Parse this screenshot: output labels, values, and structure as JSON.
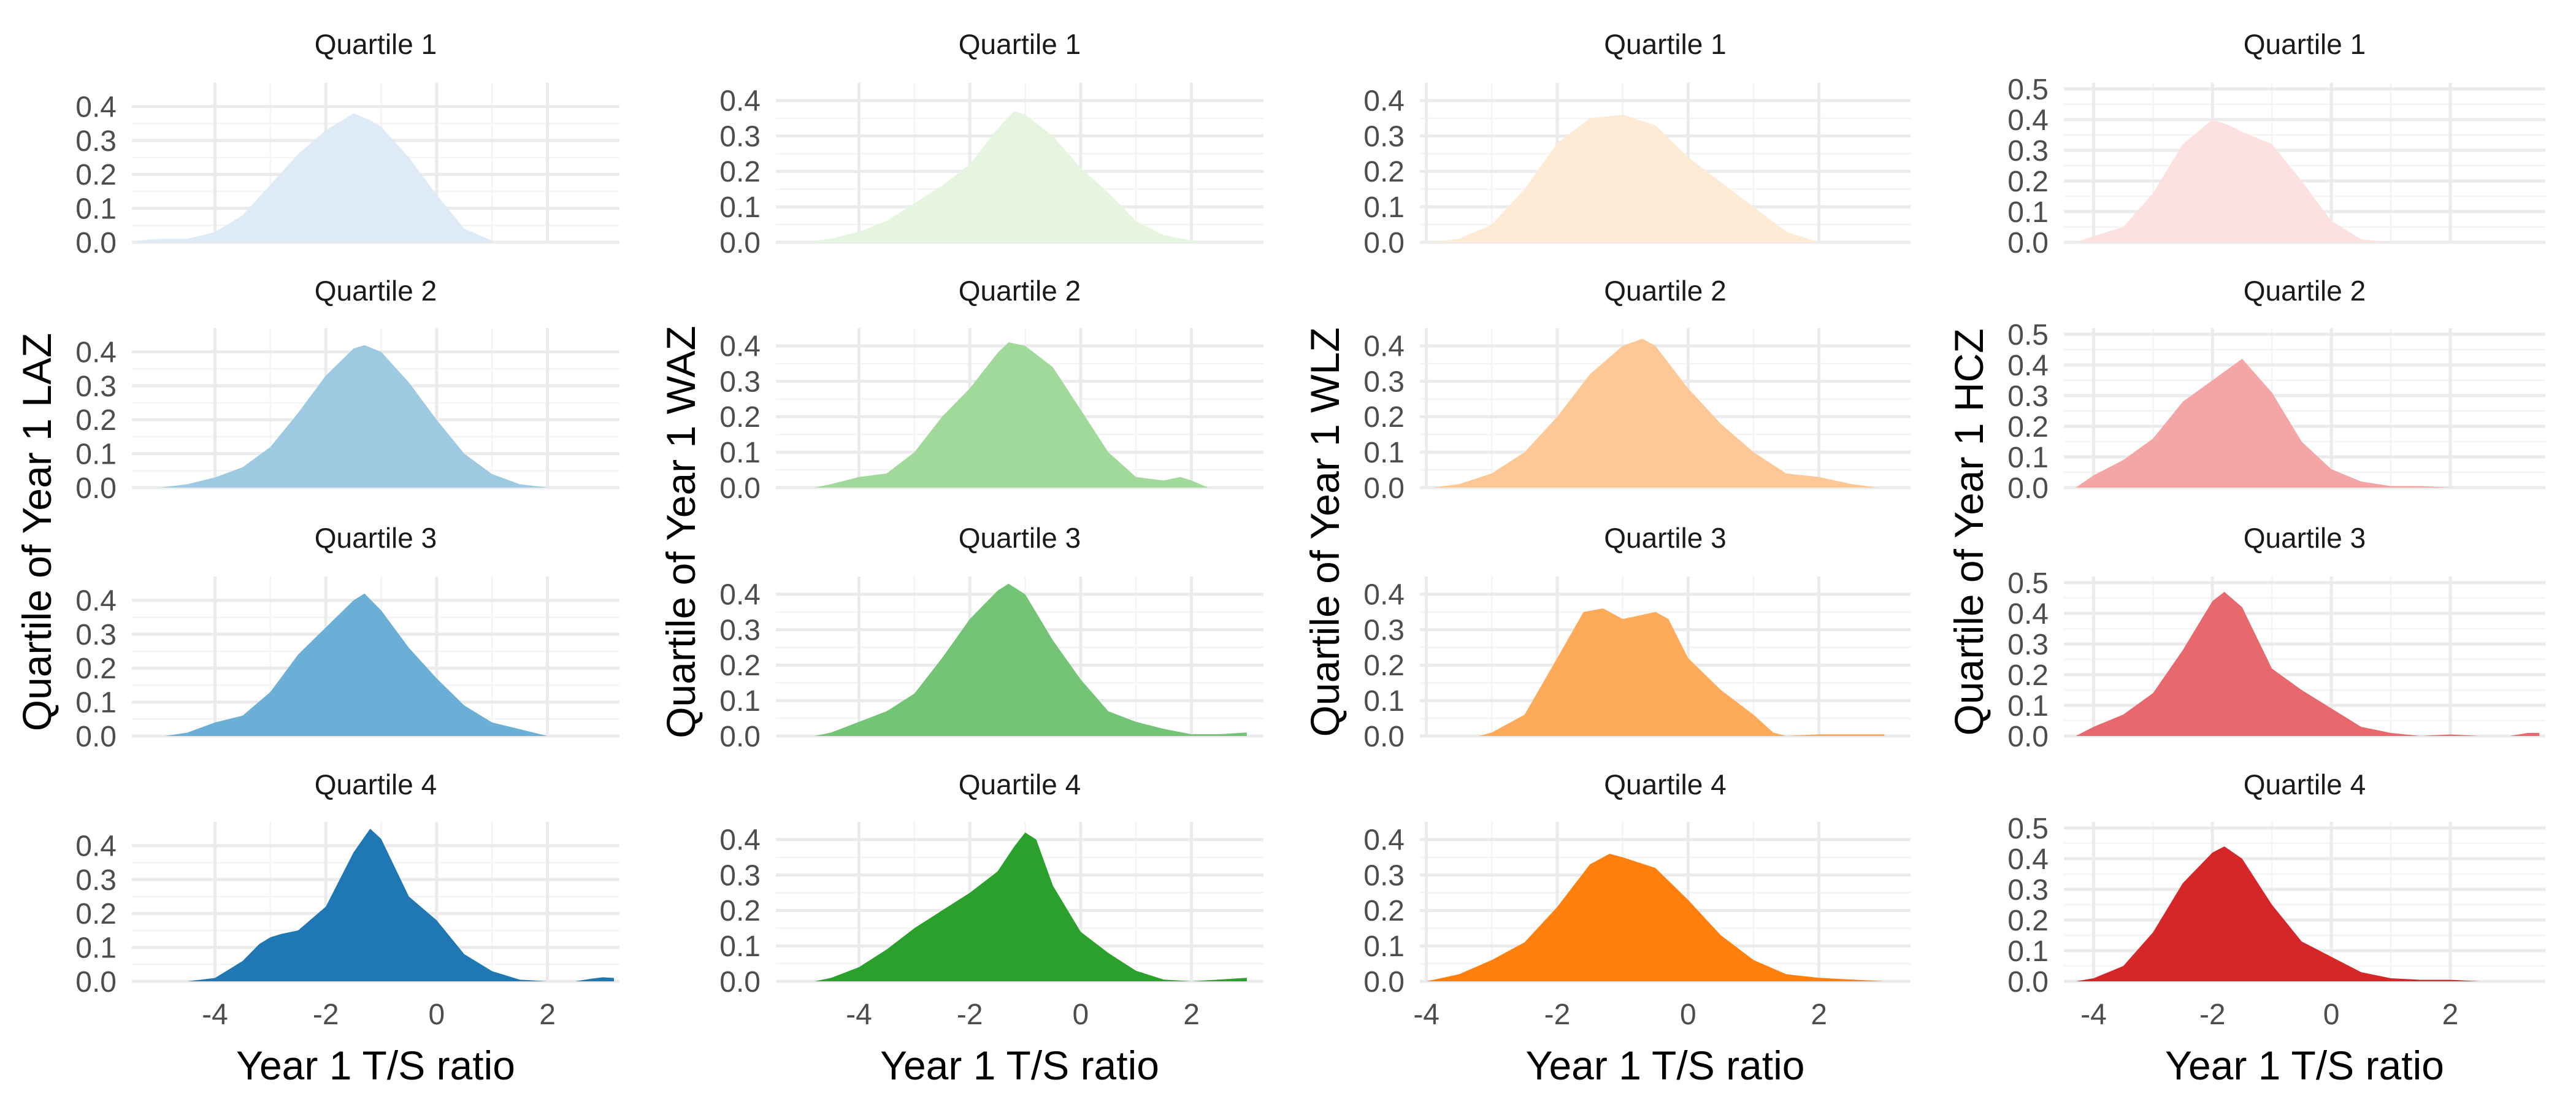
{
  "figure": {
    "x_axis_title": "Year 1 T/S ratio"
  },
  "chart_data": [
    {
      "type": "area",
      "measure": "LAZ",
      "ylabel": "Quartile of Year 1 LAZ",
      "xlabel": "Year 1 T/S ratio",
      "xlim": [
        -5.5,
        3.3
      ],
      "xticks": [
        -4,
        -2,
        0,
        2
      ],
      "colors": [
        "#deebf7",
        "#9ecae1",
        "#6baed6",
        "#1f77b4"
      ],
      "facets": [
        {
          "title": "Quartile 1",
          "ylim": [
            0,
            0.47
          ],
          "yticks": [
            0.0,
            0.1,
            0.2,
            0.3,
            0.4
          ],
          "x": [
            -5.4,
            -5.0,
            -4.5,
            -4.0,
            -3.5,
            -3.0,
            -2.5,
            -2.0,
            -1.5,
            -1.2,
            -1.0,
            -0.5,
            0.0,
            0.5,
            1.0
          ],
          "y": [
            0.005,
            0.01,
            0.01,
            0.03,
            0.08,
            0.17,
            0.26,
            0.33,
            0.38,
            0.36,
            0.34,
            0.25,
            0.14,
            0.04,
            0.005
          ]
        },
        {
          "title": "Quartile 2",
          "ylim": [
            0,
            0.47
          ],
          "yticks": [
            0.0,
            0.1,
            0.2,
            0.3,
            0.4
          ],
          "x": [
            -5.0,
            -4.5,
            -4.0,
            -3.5,
            -3.0,
            -2.5,
            -2.0,
            -1.5,
            -1.3,
            -1.0,
            -0.5,
            0.0,
            0.5,
            1.0,
            1.5,
            2.0
          ],
          "y": [
            0.0,
            0.01,
            0.03,
            0.06,
            0.12,
            0.22,
            0.33,
            0.41,
            0.42,
            0.4,
            0.31,
            0.2,
            0.1,
            0.04,
            0.01,
            0.0
          ]
        },
        {
          "title": "Quartile 3",
          "ylim": [
            0,
            0.47
          ],
          "yticks": [
            0.0,
            0.1,
            0.2,
            0.3,
            0.4
          ],
          "x": [
            -4.9,
            -4.5,
            -4.0,
            -3.5,
            -3.0,
            -2.5,
            -2.0,
            -1.5,
            -1.3,
            -1.0,
            -0.5,
            0.0,
            0.5,
            1.0,
            1.5,
            2.0
          ],
          "y": [
            0.0,
            0.01,
            0.04,
            0.06,
            0.13,
            0.24,
            0.32,
            0.4,
            0.42,
            0.37,
            0.26,
            0.17,
            0.09,
            0.04,
            0.02,
            0.0
          ]
        },
        {
          "title": "Quartile 4",
          "ylim": [
            0,
            0.47
          ],
          "yticks": [
            0.0,
            0.1,
            0.2,
            0.3,
            0.4
          ],
          "x": [
            -4.5,
            -4.0,
            -3.5,
            -3.2,
            -3.0,
            -2.8,
            -2.5,
            -2.0,
            -1.5,
            -1.2,
            -1.0,
            -0.5,
            0.0,
            0.5,
            1.0,
            1.5,
            2.0,
            2.5,
            2.8,
            3.0,
            3.2
          ],
          "y": [
            0.0,
            0.01,
            0.06,
            0.11,
            0.13,
            0.14,
            0.15,
            0.22,
            0.38,
            0.45,
            0.42,
            0.25,
            0.18,
            0.08,
            0.03,
            0.005,
            0.0,
            0.0,
            0.008,
            0.012,
            0.01
          ]
        }
      ]
    },
    {
      "type": "area",
      "measure": "WAZ",
      "ylabel": "Quartile of Year 1 WAZ",
      "xlabel": "Year 1 T/S ratio",
      "xlim": [
        -5.5,
        3.3
      ],
      "xticks": [
        -4,
        -2,
        0,
        2
      ],
      "colors": [
        "#e5f5e0",
        "#a1d99b",
        "#74c476",
        "#2ca02c"
      ],
      "facets": [
        {
          "title": "Quartile 1",
          "ylim": [
            0,
            0.45
          ],
          "yticks": [
            0.0,
            0.1,
            0.2,
            0.3,
            0.4
          ],
          "x": [
            -5.0,
            -4.5,
            -4.0,
            -3.5,
            -3.0,
            -2.5,
            -2.0,
            -1.5,
            -1.2,
            -1.0,
            -0.5,
            0.0,
            0.5,
            1.0,
            1.5,
            2.0,
            2.3
          ],
          "y": [
            0.0,
            0.01,
            0.03,
            0.06,
            0.11,
            0.16,
            0.22,
            0.32,
            0.37,
            0.36,
            0.3,
            0.21,
            0.14,
            0.06,
            0.02,
            0.005,
            0.0
          ]
        },
        {
          "title": "Quartile 2",
          "ylim": [
            0,
            0.45
          ],
          "yticks": [
            0.0,
            0.1,
            0.2,
            0.3,
            0.4
          ],
          "x": [
            -4.8,
            -4.5,
            -4.0,
            -3.5,
            -3.0,
            -2.5,
            -2.0,
            -1.5,
            -1.3,
            -1.0,
            -0.5,
            0.0,
            0.5,
            1.0,
            1.5,
            1.8,
            2.0,
            2.3
          ],
          "y": [
            0.0,
            0.01,
            0.03,
            0.04,
            0.1,
            0.2,
            0.28,
            0.38,
            0.41,
            0.4,
            0.34,
            0.22,
            0.1,
            0.03,
            0.02,
            0.03,
            0.02,
            0.0
          ]
        },
        {
          "title": "Quartile 3",
          "ylim": [
            0,
            0.45
          ],
          "yticks": [
            0.0,
            0.1,
            0.2,
            0.3,
            0.4
          ],
          "x": [
            -4.8,
            -4.5,
            -4.0,
            -3.5,
            -3.0,
            -2.5,
            -2.0,
            -1.5,
            -1.3,
            -1.0,
            -0.5,
            0.0,
            0.5,
            1.0,
            1.5,
            2.0,
            2.5,
            3.0
          ],
          "y": [
            0.0,
            0.01,
            0.04,
            0.07,
            0.12,
            0.22,
            0.33,
            0.41,
            0.43,
            0.4,
            0.27,
            0.16,
            0.07,
            0.04,
            0.02,
            0.005,
            0.005,
            0.01
          ]
        },
        {
          "title": "Quartile 4",
          "ylim": [
            0,
            0.45
          ],
          "yticks": [
            0.0,
            0.1,
            0.2,
            0.3,
            0.4
          ],
          "x": [
            -4.8,
            -4.5,
            -4.0,
            -3.5,
            -3.0,
            -2.5,
            -2.0,
            -1.5,
            -1.2,
            -1.0,
            -0.8,
            -0.5,
            0.0,
            0.5,
            1.0,
            1.5,
            2.0,
            2.5,
            3.0
          ],
          "y": [
            0.0,
            0.01,
            0.04,
            0.09,
            0.15,
            0.2,
            0.25,
            0.31,
            0.38,
            0.42,
            0.4,
            0.27,
            0.14,
            0.08,
            0.03,
            0.005,
            0.0,
            0.005,
            0.01
          ]
        }
      ]
    },
    {
      "type": "area",
      "measure": "WLZ",
      "ylabel": "Quartile of Year 1 WLZ",
      "xlabel": "Year 1 T/S ratio",
      "xlim": [
        -4.1,
        3.4
      ],
      "xticks": [
        -4,
        -2,
        0,
        2
      ],
      "colors": [
        "#fdebd6",
        "#fdc896",
        "#fdaa5a",
        "#ff7f0e"
      ],
      "facets": [
        {
          "title": "Quartile 1",
          "ylim": [
            0,
            0.45
          ],
          "yticks": [
            0.0,
            0.1,
            0.2,
            0.3,
            0.4
          ],
          "x": [
            -3.9,
            -3.5,
            -3.0,
            -2.5,
            -2.0,
            -1.5,
            -1.0,
            -0.5,
            0.0,
            0.5,
            1.0,
            1.5,
            2.0
          ],
          "y": [
            0.0,
            0.01,
            0.05,
            0.15,
            0.28,
            0.35,
            0.36,
            0.33,
            0.24,
            0.17,
            0.1,
            0.03,
            0.0
          ]
        },
        {
          "title": "Quartile 2",
          "ylim": [
            0,
            0.45
          ],
          "yticks": [
            0.0,
            0.1,
            0.2,
            0.3,
            0.4
          ],
          "x": [
            -3.9,
            -3.5,
            -3.0,
            -2.5,
            -2.0,
            -1.5,
            -1.0,
            -0.7,
            -0.5,
            0.0,
            0.5,
            1.0,
            1.5,
            2.0,
            2.5,
            2.9
          ],
          "y": [
            0.0,
            0.01,
            0.04,
            0.1,
            0.2,
            0.32,
            0.4,
            0.42,
            0.4,
            0.28,
            0.18,
            0.1,
            0.04,
            0.03,
            0.01,
            0.0
          ]
        },
        {
          "title": "Quartile 3",
          "ylim": [
            0,
            0.45
          ],
          "yticks": [
            0.0,
            0.1,
            0.2,
            0.3,
            0.4
          ],
          "x": [
            -3.2,
            -3.0,
            -2.5,
            -2.0,
            -1.6,
            -1.3,
            -1.0,
            -0.5,
            -0.3,
            0.0,
            0.5,
            1.0,
            1.3,
            1.5,
            2.0,
            2.5,
            3.0
          ],
          "y": [
            0.0,
            0.01,
            0.06,
            0.22,
            0.35,
            0.36,
            0.33,
            0.35,
            0.33,
            0.22,
            0.13,
            0.06,
            0.01,
            0.0,
            0.005,
            0.005,
            0.005
          ]
        },
        {
          "title": "Quartile 4",
          "ylim": [
            0,
            0.45
          ],
          "yticks": [
            0.0,
            0.1,
            0.2,
            0.3,
            0.4
          ],
          "x": [
            -4.0,
            -3.5,
            -3.0,
            -2.5,
            -2.0,
            -1.5,
            -1.2,
            -1.0,
            -0.5,
            0.0,
            0.5,
            1.0,
            1.5,
            2.0,
            2.5,
            3.0
          ],
          "y": [
            0.0,
            0.02,
            0.06,
            0.11,
            0.21,
            0.33,
            0.36,
            0.35,
            0.32,
            0.23,
            0.13,
            0.06,
            0.02,
            0.01,
            0.005,
            0.0
          ]
        }
      ]
    },
    {
      "type": "area",
      "measure": "HCZ",
      "ylabel": "Quartile of Year 1 HCZ",
      "xlabel": "Year 1 T/S ratio",
      "xlim": [
        -4.5,
        3.6
      ],
      "xticks": [
        -4,
        -2,
        0,
        2
      ],
      "colors": [
        "#fde0e0",
        "#f4a6a6",
        "#e8696d",
        "#d62728"
      ],
      "facets": [
        {
          "title": "Quartile 1",
          "ylim": [
            0,
            0.52
          ],
          "yticks": [
            0.0,
            0.1,
            0.2,
            0.3,
            0.4,
            0.5
          ],
          "x": [
            -4.3,
            -4.0,
            -3.5,
            -3.0,
            -2.5,
            -2.0,
            -1.7,
            -1.5,
            -1.0,
            -0.5,
            0.0,
            0.5,
            1.0
          ],
          "y": [
            0.0,
            0.02,
            0.05,
            0.16,
            0.32,
            0.4,
            0.38,
            0.36,
            0.32,
            0.2,
            0.07,
            0.01,
            0.0
          ]
        },
        {
          "title": "Quartile 2",
          "ylim": [
            0,
            0.52
          ],
          "yticks": [
            0.0,
            0.1,
            0.2,
            0.3,
            0.4,
            0.5
          ],
          "x": [
            -4.3,
            -4.0,
            -3.5,
            -3.0,
            -2.5,
            -2.0,
            -1.5,
            -1.0,
            -0.5,
            0.0,
            0.5,
            1.0,
            1.5,
            2.0
          ],
          "y": [
            0.0,
            0.04,
            0.09,
            0.16,
            0.28,
            0.35,
            0.42,
            0.31,
            0.15,
            0.06,
            0.02,
            0.005,
            0.005,
            0.0
          ]
        },
        {
          "title": "Quartile 3",
          "ylim": [
            0,
            0.52
          ],
          "yticks": [
            0.0,
            0.1,
            0.2,
            0.3,
            0.4,
            0.5
          ],
          "x": [
            -4.3,
            -4.0,
            -3.5,
            -3.0,
            -2.5,
            -2.0,
            -1.8,
            -1.5,
            -1.0,
            -0.5,
            0.0,
            0.5,
            1.0,
            1.5,
            2.0,
            2.5,
            3.0,
            3.3,
            3.5
          ],
          "y": [
            0.0,
            0.03,
            0.07,
            0.14,
            0.28,
            0.44,
            0.47,
            0.42,
            0.22,
            0.15,
            0.09,
            0.03,
            0.01,
            0.0,
            0.005,
            0.0,
            0.0,
            0.01,
            0.01
          ]
        },
        {
          "title": "Quartile 4",
          "ylim": [
            0,
            0.52
          ],
          "yticks": [
            0.0,
            0.1,
            0.2,
            0.3,
            0.4,
            0.5
          ],
          "x": [
            -4.3,
            -4.0,
            -3.5,
            -3.0,
            -2.5,
            -2.0,
            -1.8,
            -1.5,
            -1.0,
            -0.5,
            0.0,
            0.5,
            1.0,
            1.5,
            2.0,
            2.5
          ],
          "y": [
            0.0,
            0.01,
            0.05,
            0.16,
            0.32,
            0.42,
            0.44,
            0.4,
            0.25,
            0.13,
            0.08,
            0.03,
            0.01,
            0.005,
            0.005,
            0.0
          ]
        }
      ]
    }
  ]
}
